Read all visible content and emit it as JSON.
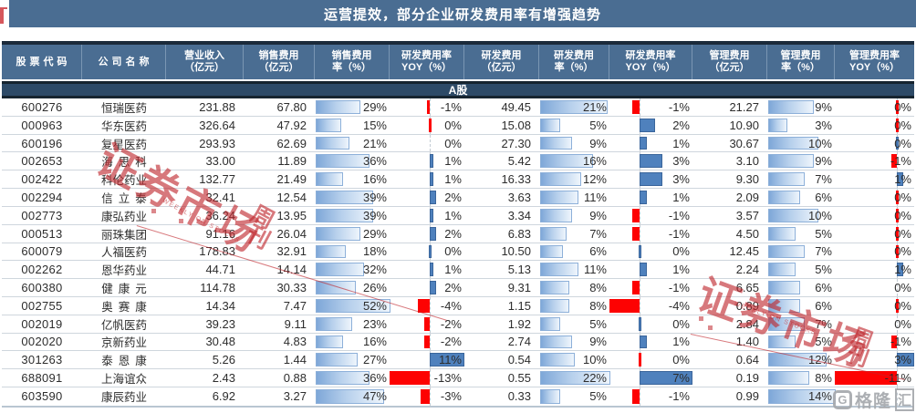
{
  "chart_data": {
    "type": "table",
    "title": "运营提效，部分企业研发费用率有增强趋势",
    "group_label": "A股",
    "columns": [
      {
        "l1": "股票代码",
        "l2": ""
      },
      {
        "l1": "公司名称",
        "l2": ""
      },
      {
        "l1": "营业收入",
        "l2": "（亿元）"
      },
      {
        "l1": "销售费用",
        "l2": "（亿元）"
      },
      {
        "l1": "销售费用",
        "l2": "率（%）"
      },
      {
        "l1": "研发费用率",
        "l2": "YOY（%）"
      },
      {
        "l1": "研发费用",
        "l2": "（亿元）"
      },
      {
        "l1": "研发费用",
        "l2": "率（%）"
      },
      {
        "l1": "研发费用率",
        "l2": "YOY（%）"
      },
      {
        "l1": "管理费用",
        "l2": "（亿元）"
      },
      {
        "l1": "管理费用",
        "l2": "率（%）"
      },
      {
        "l1": "管理费用率",
        "l2": "YOY（%）"
      }
    ],
    "rows": [
      {
        "code": "600276",
        "name": "恒瑞医药",
        "rev": "231.88",
        "se": "67.80",
        "sr": 29,
        "sy": -1,
        "rd": "49.45",
        "rr": 21,
        "ry": -1,
        "me": "21.27",
        "mr": 9,
        "my": 0,
        "myt": "r"
      },
      {
        "code": "000963",
        "name": "华东医药",
        "rev": "326.64",
        "se": "47.92",
        "sr": 15,
        "sy": 0,
        "syt": "r",
        "rd": "15.08",
        "rr": 5,
        "ry": 2,
        "me": "10.90",
        "mr": 3,
        "my": 0,
        "myt": "r"
      },
      {
        "code": "600196",
        "name": "复星医药",
        "rev": "293.93",
        "se": "62.69",
        "sr": 21,
        "sy": 0,
        "rd": "27.30",
        "rr": 9,
        "ry": 1,
        "me": "30.67",
        "mr": 10,
        "my": 0,
        "myt": "b"
      },
      {
        "code": "002653",
        "name": "海思科",
        "rev": "33.00",
        "se": "11.89",
        "sr": 36,
        "sy": 1,
        "rd": "5.42",
        "rr": 16,
        "ry": 3,
        "me": "3.10",
        "mr": 9,
        "my": -1
      },
      {
        "code": "002422",
        "name": "科伦药业",
        "rev": "132.77",
        "se": "21.49",
        "sr": 16,
        "sy": 1,
        "rd": "16.33",
        "rr": 12,
        "ry": 3,
        "me": "9.30",
        "mr": 7,
        "my": 1
      },
      {
        "code": "002294",
        "name": "信立泰",
        "rev": "32.41",
        "se": "12.54",
        "sr": 39,
        "sy": 2,
        "rd": "3.63",
        "rr": 11,
        "ry": 1,
        "me": "2.09",
        "mr": 6,
        "my": 0,
        "myt": "r"
      },
      {
        "code": "002773",
        "name": "康弘药业",
        "rev": "36.24",
        "se": "13.95",
        "sr": 39,
        "sy": 1,
        "rd": "3.34",
        "rr": 9,
        "ry": -1,
        "me": "3.57",
        "mr": 10,
        "my": 0,
        "myt": "r"
      },
      {
        "code": "000513",
        "name": "丽珠集团",
        "rev": "91.16",
        "se": "26.04",
        "sr": 29,
        "sy": 2,
        "rd": "6.83",
        "rr": 7,
        "ry": -1,
        "me": "4.50",
        "mr": 5,
        "my": 0,
        "myt": "r"
      },
      {
        "code": "600079",
        "name": "人福医药",
        "rev": "178.83",
        "se": "32.91",
        "sr": 18,
        "sy": 0,
        "syt": "b",
        "rd": "10.50",
        "rr": 6,
        "ry": 0,
        "ryt": "b",
        "me": "12.45",
        "mr": 7,
        "my": 0,
        "myt": "r"
      },
      {
        "code": "002262",
        "name": "恩华药业",
        "rev": "44.71",
        "se": "14.14",
        "sr": 32,
        "sy": 1,
        "rd": "5.13",
        "rr": 11,
        "ry": 1,
        "me": "2.24",
        "mr": 5,
        "my": 1
      },
      {
        "code": "600380",
        "name": "健康元",
        "rev": "114.78",
        "se": "30.33",
        "sr": 26,
        "sy": 2,
        "rd": "9.31",
        "rr": 8,
        "ry": -1,
        "me": "6.65",
        "mr": 6,
        "my": 0
      },
      {
        "code": "002755",
        "name": "奥赛康",
        "rev": "14.34",
        "se": "7.47",
        "sr": 52,
        "sy": -4,
        "rd": "1.15",
        "rr": 8,
        "ry": -4,
        "me": "0.89",
        "mr": 6,
        "my": 0,
        "myt": "r"
      },
      {
        "code": "002019",
        "name": "亿帆医药",
        "rev": "39.23",
        "se": "9.11",
        "sr": 23,
        "sy": -2,
        "rd": "1.92",
        "rr": 5,
        "ry": 0,
        "ryt": "b",
        "me": "2.84",
        "mr": 7,
        "my": 0
      },
      {
        "code": "002020",
        "name": "京新药业",
        "rev": "30.48",
        "se": "4.83",
        "sr": 16,
        "sy": -2,
        "rd": "2.74",
        "rr": 9,
        "ry": 1,
        "me": "1.40",
        "mr": 5,
        "my": -1
      },
      {
        "code": "301263",
        "name": "泰恩康",
        "rev": "5.26",
        "se": "1.44",
        "sr": 27,
        "sy": 11,
        "rd": "0.54",
        "rr": 10,
        "ry": 0,
        "ryt": "r",
        "me": "0.64",
        "mr": 12,
        "my": 3
      },
      {
        "code": "688091",
        "name": "上海谊众",
        "rev": "2.43",
        "se": "0.88",
        "sr": 36,
        "sy": -13,
        "rd": "0.55",
        "rr": 22,
        "ry": 7,
        "me": "0.19",
        "mr": 8,
        "my": -11
      },
      {
        "code": "603590",
        "name": "康辰药业",
        "rev": "6.92",
        "se": "3.27",
        "sr": 47,
        "sy": -3,
        "rd": "0.33",
        "rr": 5,
        "ry": -1,
        "me": "0.99",
        "mr": 14,
        "my": null
      }
    ]
  },
  "watermarks": {
    "main": "证券市场",
    "sub": "周刊",
    "tiny": "WEEKLY ON STOCKS"
  },
  "logo": {
    "g": "G",
    "t1": "格隆",
    "t2": "汇"
  },
  "colors": {
    "header_bg": "#4a6d92",
    "band_bg": "#2d4a67",
    "navy": "#1b2a3a",
    "bar_positive": "#4f81bd",
    "bar_negative": "#fd0202",
    "bar_gradient_start": "#7ea7d8",
    "watermark_red": "#c0272d",
    "logo_gray": "#a6a9ad"
  }
}
